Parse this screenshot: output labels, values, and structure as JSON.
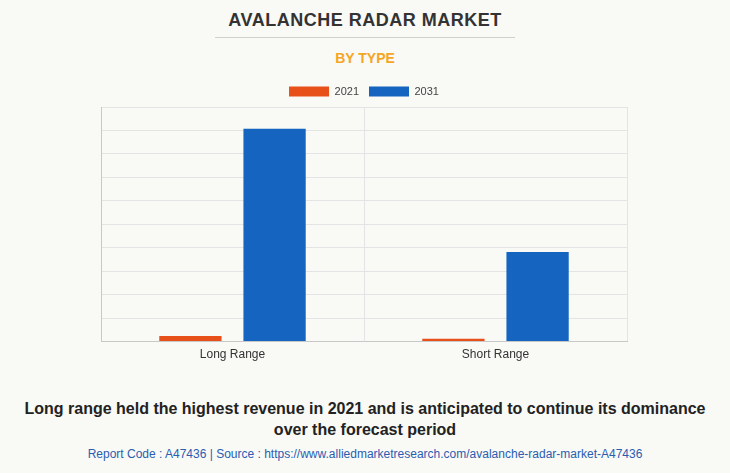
{
  "chart_data": {
    "type": "bar",
    "title": "AVALANCHE RADAR MARKET",
    "subtitle": "BY TYPE",
    "categories": [
      "Long Range",
      "Short Range"
    ],
    "series": [
      {
        "name": "2021",
        "color": "#e8501a",
        "values": [
          0.24,
          0.12
        ]
      },
      {
        "name": "2031",
        "color": "#1565c0",
        "values": [
          9.07,
          3.82
        ]
      }
    ],
    "ylim": [
      0,
      10
    ],
    "yticks": [
      0,
      1,
      2,
      3,
      4,
      5,
      6,
      7,
      8,
      9,
      10
    ],
    "grid": true,
    "legend": "top",
    "tick_labels": "x",
    "annotations": [
      "Long range held the highest revenue in 2021 and is anticipated to continue its dominance over the forecast period",
      "Report Code : A47436  |  Source : https://www.alliedmarketresearch.com/avalanche-radar-market-A47436"
    ]
  }
}
